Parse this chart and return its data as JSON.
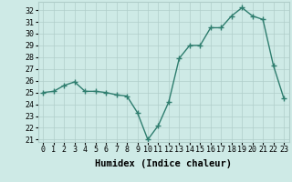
{
  "x": [
    0,
    1,
    2,
    3,
    4,
    5,
    6,
    7,
    8,
    9,
    10,
    11,
    12,
    13,
    14,
    15,
    16,
    17,
    18,
    19,
    20,
    21,
    22,
    23
  ],
  "y": [
    25.0,
    25.1,
    25.6,
    25.9,
    25.1,
    25.1,
    25.0,
    24.8,
    24.7,
    23.3,
    21.0,
    22.2,
    24.2,
    27.9,
    29.0,
    29.0,
    30.5,
    30.5,
    31.5,
    32.2,
    31.5,
    31.2,
    27.3,
    24.5
  ],
  "line_color": "#2e7d6e",
  "marker": "+",
  "marker_size": 4,
  "linewidth": 1.0,
  "bg_color": "#ceeae6",
  "grid_color": "#b0ceca",
  "xlabel": "Humidex (Indice chaleur)",
  "xlim": [
    -0.5,
    23.5
  ],
  "ylim": [
    20.8,
    32.7
  ],
  "yticks": [
    21,
    22,
    23,
    24,
    25,
    26,
    27,
    28,
    29,
    30,
    31,
    32
  ],
  "xticks": [
    0,
    1,
    2,
    3,
    4,
    5,
    6,
    7,
    8,
    9,
    10,
    11,
    12,
    13,
    14,
    15,
    16,
    17,
    18,
    19,
    20,
    21,
    22,
    23
  ],
  "xlabel_fontsize": 7.5,
  "tick_fontsize": 6
}
